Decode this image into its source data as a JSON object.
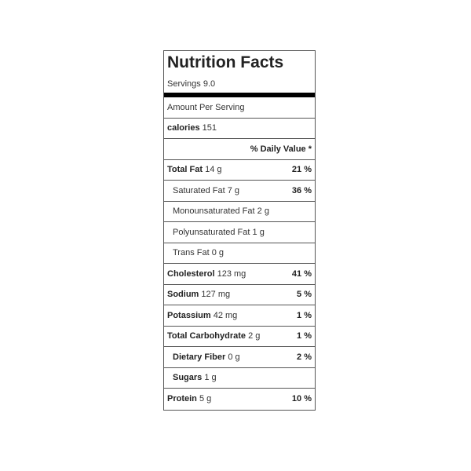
{
  "title": "Nutrition Facts",
  "servings": "Servings 9.0",
  "amount_per_serving": "Amount Per Serving",
  "calories": {
    "label": "calories",
    "value": "151"
  },
  "daily_value_header": "% Daily Value *",
  "nutrients": [
    {
      "name": "Total Fat",
      "amount": "14 g",
      "pct": "21 %",
      "bold": true,
      "indent": false
    },
    {
      "name": "Saturated Fat",
      "amount": "7 g",
      "pct": "36 %",
      "bold": false,
      "indent": true
    },
    {
      "name": "Monounsaturated Fat",
      "amount": "2 g",
      "pct": "",
      "bold": false,
      "indent": true
    },
    {
      "name": "Polyunsaturated Fat",
      "amount": "1 g",
      "pct": "",
      "bold": false,
      "indent": true
    },
    {
      "name": "Trans Fat",
      "amount": "0 g",
      "pct": "",
      "bold": false,
      "indent": true
    },
    {
      "name": "Cholesterol",
      "amount": "123 mg",
      "pct": "41 %",
      "bold": true,
      "indent": false
    },
    {
      "name": "Sodium",
      "amount": "127 mg",
      "pct": "5 %",
      "bold": true,
      "indent": false
    },
    {
      "name": "Potassium",
      "amount": "42 mg",
      "pct": "1 %",
      "bold": true,
      "indent": false
    },
    {
      "name": "Total Carbohydrate",
      "amount": "2 g",
      "pct": "1 %",
      "bold": true,
      "indent": false
    },
    {
      "name": "Dietary Fiber",
      "amount": "0 g",
      "pct": "2 %",
      "bold": true,
      "indent": true
    },
    {
      "name": "Sugars",
      "amount": "1 g",
      "pct": "",
      "bold": true,
      "indent": true
    },
    {
      "name": "Protein",
      "amount": "5 g",
      "pct": "10 %",
      "bold": true,
      "indent": false
    }
  ]
}
